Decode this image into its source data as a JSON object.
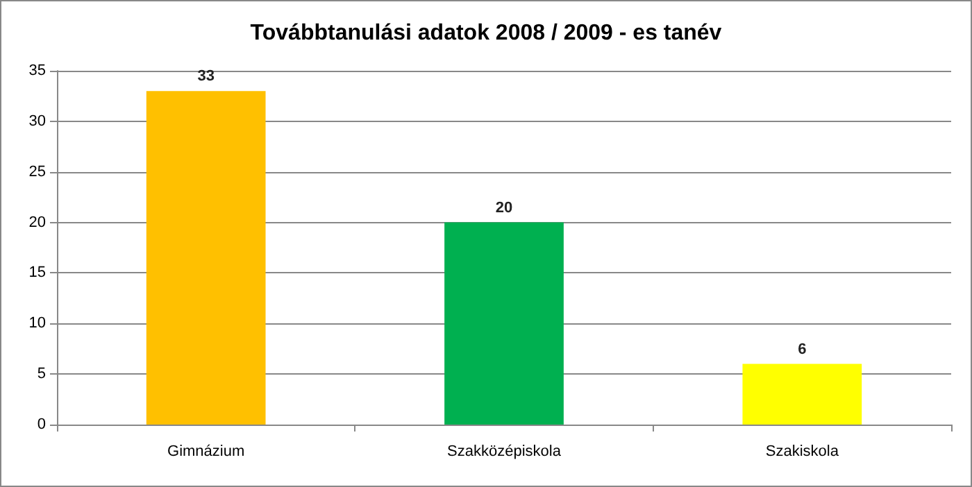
{
  "chart_data": {
    "type": "bar",
    "title": "Továbbtanulási adatok 2008 / 2009 - es tanév",
    "categories": [
      "Gimnázium",
      "Szakközépiskola",
      "Szakiskola"
    ],
    "values": [
      33,
      20,
      6
    ],
    "colors": [
      "#ffc000",
      "#00b050",
      "#ffff00"
    ],
    "ylim": [
      0,
      35
    ],
    "yticks": [
      0,
      5,
      10,
      15,
      20,
      25,
      30,
      35
    ],
    "grid": "y",
    "data_labels": true
  }
}
